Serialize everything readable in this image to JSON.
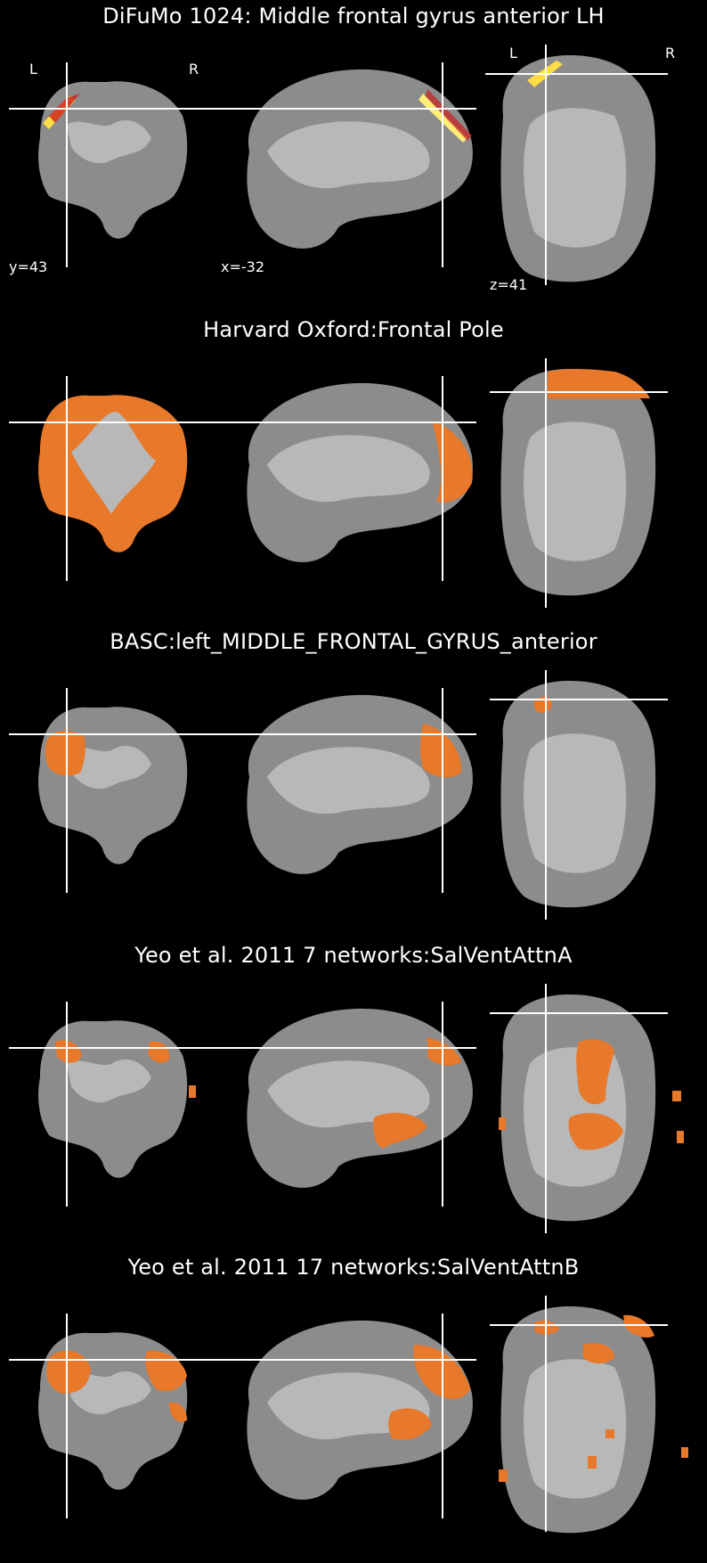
{
  "panels": [
    {
      "title": "DiFuMo 1024: Middle frontal gyrus anterior LH",
      "overlay": "hot-map",
      "coords": {
        "coronal": "y=43",
        "sagittal": "x=-32",
        "axial": "z=41"
      },
      "orientation": {
        "left": "L",
        "right": "R",
        "axial_left": "L",
        "axial_right": "R"
      }
    },
    {
      "title": "Harvard Oxford:Frontal Pole",
      "overlay": "frontal-pole-region"
    },
    {
      "title": "BASC:left_MIDDLE_FRONTAL_GYRUS_anterior",
      "overlay": "middle-frontal-region"
    },
    {
      "title": "Yeo et al. 2011 7 networks:SalVentAttnA",
      "overlay": "salience-network-a"
    },
    {
      "title": "Yeo et al. 2011 17 networks:SalVentAttnB",
      "overlay": "salience-network-b"
    }
  ],
  "colors": {
    "background": "#000000",
    "brain": "#8c8c8c",
    "white_matter": "#b8b8b8",
    "overlay_orange": "#e8782a",
    "hot_low": "#8b0000",
    "hot_high": "#fff7a0",
    "crosshair": "#ffffff"
  }
}
